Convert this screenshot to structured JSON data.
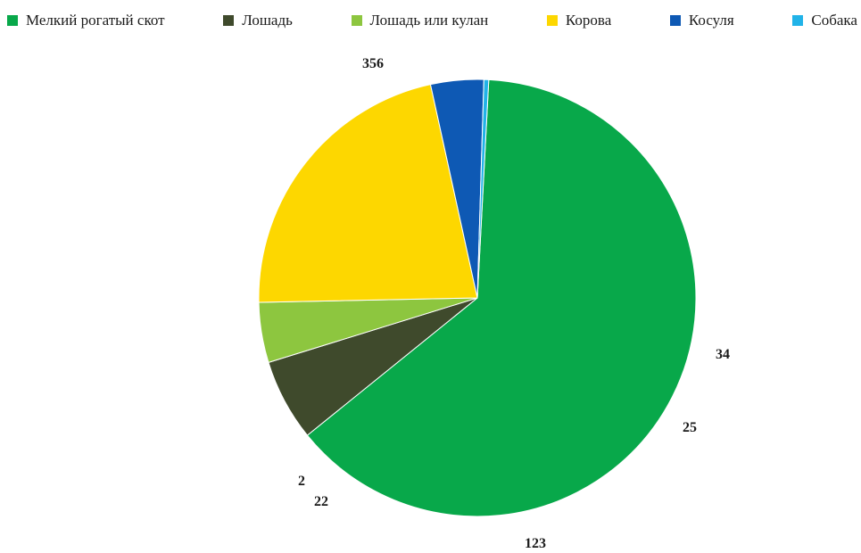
{
  "chart_data": {
    "type": "pie",
    "categories": [
      "Мелкий рогатый скот",
      "Лошадь",
      "Лошадь или кулан",
      "Корова",
      "Косуля",
      "Собака"
    ],
    "values": [
      356,
      34,
      25,
      123,
      22,
      2
    ],
    "colors": [
      "#08a84a",
      "#3f4a2c",
      "#8dc63f",
      "#fdd700",
      "#0e59b4",
      "#21b3e8"
    ],
    "legend_position": "top",
    "start_angle_deg": 87,
    "direction": "clockwise"
  }
}
